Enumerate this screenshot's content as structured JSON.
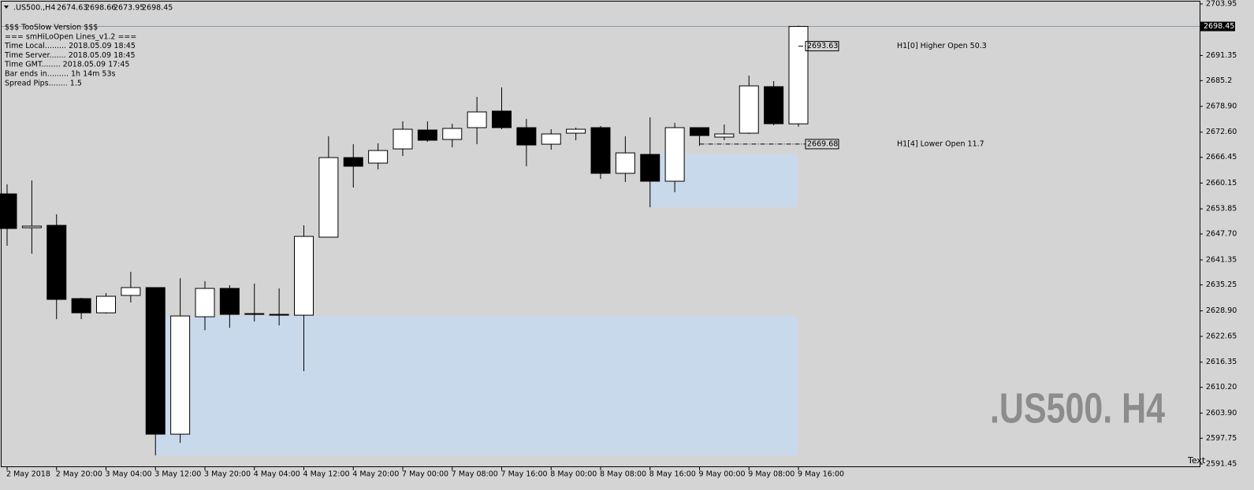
{
  "chart_data": {
    "type": "candlestick",
    "symbol": ".US500.,H4",
    "watermark": ".US500. H4",
    "corner_text": "Text",
    "info_lines": [
      "$$$ TooSlow Version $$$",
      "=== smHiLoOpen Lines_v1.2 ===",
      "Time Local......... 2018.05.09 18:45",
      "Time Server....... 2018.05.09 18:45",
      "Time GMT........ 2018.05.09 17:45",
      "Bar ends in......... 1h 14m 53s",
      "Spread Pips........ 1.5"
    ],
    "categories": [
      "2 May 2018",
      null,
      "2 May 20:00",
      null,
      "3 May 04:00",
      null,
      "3 May 12:00",
      null,
      "3 May 20:00",
      null,
      "4 May 04:00",
      null,
      "4 May 12:00",
      null,
      "4 May 20:00",
      null,
      "7 May 00:00",
      null,
      "7 May 08:00",
      null,
      "7 May 16:00",
      null,
      "8 May 00:00",
      null,
      "8 May 08:00",
      null,
      "8 May 16:00",
      null,
      "9 May 00:00",
      null,
      "9 May 08:00",
      null,
      "9 May 16:00"
    ],
    "open": [
      2657.51,
      2649.23,
      2649.81,
      2631.89,
      2628.42,
      2632.67,
      2634.59,
      2598.75,
      2627.46,
      2634.39,
      2628.23,
      2628.04,
      2627.84,
      2646.92,
      2666.38,
      2665.03,
      2668.5,
      2673.12,
      2670.81,
      2673.7,
      2677.75,
      2673.7,
      2669.65,
      2672.35,
      2673.7,
      2662.53,
      2667.15,
      2660.6,
      2673.7,
      2671.39,
      2672.35,
      2683.72,
      2674.63
    ],
    "high": [
      2659.83,
      2660.79,
      2652.51,
      2632.09,
      2633.24,
      2638.44,
      2634.59,
      2636.9,
      2636.13,
      2635.17,
      2635.55,
      2634.39,
      2649.81,
      2671.58,
      2669.65,
      2669.85,
      2675.24,
      2675.24,
      2674.66,
      2681.22,
      2683.53,
      2675.82,
      2673.31,
      2673.7,
      2674.09,
      2671.58,
      2676.2,
      2674.86,
      2673.7,
      2674.47,
      2686.42,
      2685.07,
      2698.66
    ],
    "low": [
      2644.8,
      2642.87,
      2626.88,
      2626.88,
      2628.23,
      2630.93,
      2593.55,
      2596.63,
      2624.18,
      2624.76,
      2626.3,
      2625.34,
      2614.16,
      2646.92,
      2659.06,
      2663.49,
      2666.76,
      2670.23,
      2668.88,
      2669.65,
      2673.31,
      2664.26,
      2668.31,
      2670.62,
      2661.16,
      2660.4,
      2654.24,
      2657.9,
      2669.27,
      2670.62,
      2672.16,
      2674.28,
      2673.95
    ],
    "close": [
      2649.04,
      2649.62,
      2631.7,
      2628.42,
      2632.47,
      2634.59,
      2598.75,
      2627.65,
      2634.39,
      2628.04,
      2628.04,
      2627.84,
      2647.11,
      2666.38,
      2664.26,
      2668.11,
      2673.31,
      2670.62,
      2673.51,
      2677.55,
      2673.7,
      2669.46,
      2672.16,
      2673.31,
      2662.53,
      2667.53,
      2660.6,
      2673.7,
      2671.77,
      2672.16,
      2683.91,
      2674.66,
      2698.45
    ],
    "zones": [
      {
        "high": 2627.65,
        "low": 2593.55,
        "from": "3 May 12:00",
        "to": "9 May 16:00",
        "color": "#c9d9ec"
      },
      {
        "high": 2667.15,
        "low": 2654.24,
        "from": "8 May 16:00",
        "to": "9 May 16:00",
        "color": "#c9d9ec"
      }
    ],
    "levels": [
      {
        "value": 2693.63,
        "text": "H1[0] Higher Open 50.3",
        "from": "9 May 16:00"
      },
      {
        "value": 2669.68,
        "text": "H1[4] Lower Open 11.7",
        "from": "9 May 00:00"
      }
    ],
    "ylim": [
      2591.45,
      2703.95
    ],
    "yticks": [
      2703.95,
      2691.35,
      2685.2,
      {
        "value": 2678.9,
        "label": "2678.90"
      },
      {
        "value": 2672.6,
        "label": "2672.60"
      },
      2666.45,
      2660.15,
      2653.85,
      {
        "value": 2647.7,
        "label": "2647.70"
      },
      2641.35,
      2635.25,
      {
        "value": 2628.9,
        "label": "2628.90"
      },
      2622.65,
      2616.35,
      {
        "value": 2610.2,
        "label": "2610.20"
      },
      {
        "value": 2603.9,
        "label": "2603.90"
      },
      2597.75,
      2591.45
    ],
    "up_color": "#ffffff",
    "down_color": "#000000",
    "grid": false
  }
}
